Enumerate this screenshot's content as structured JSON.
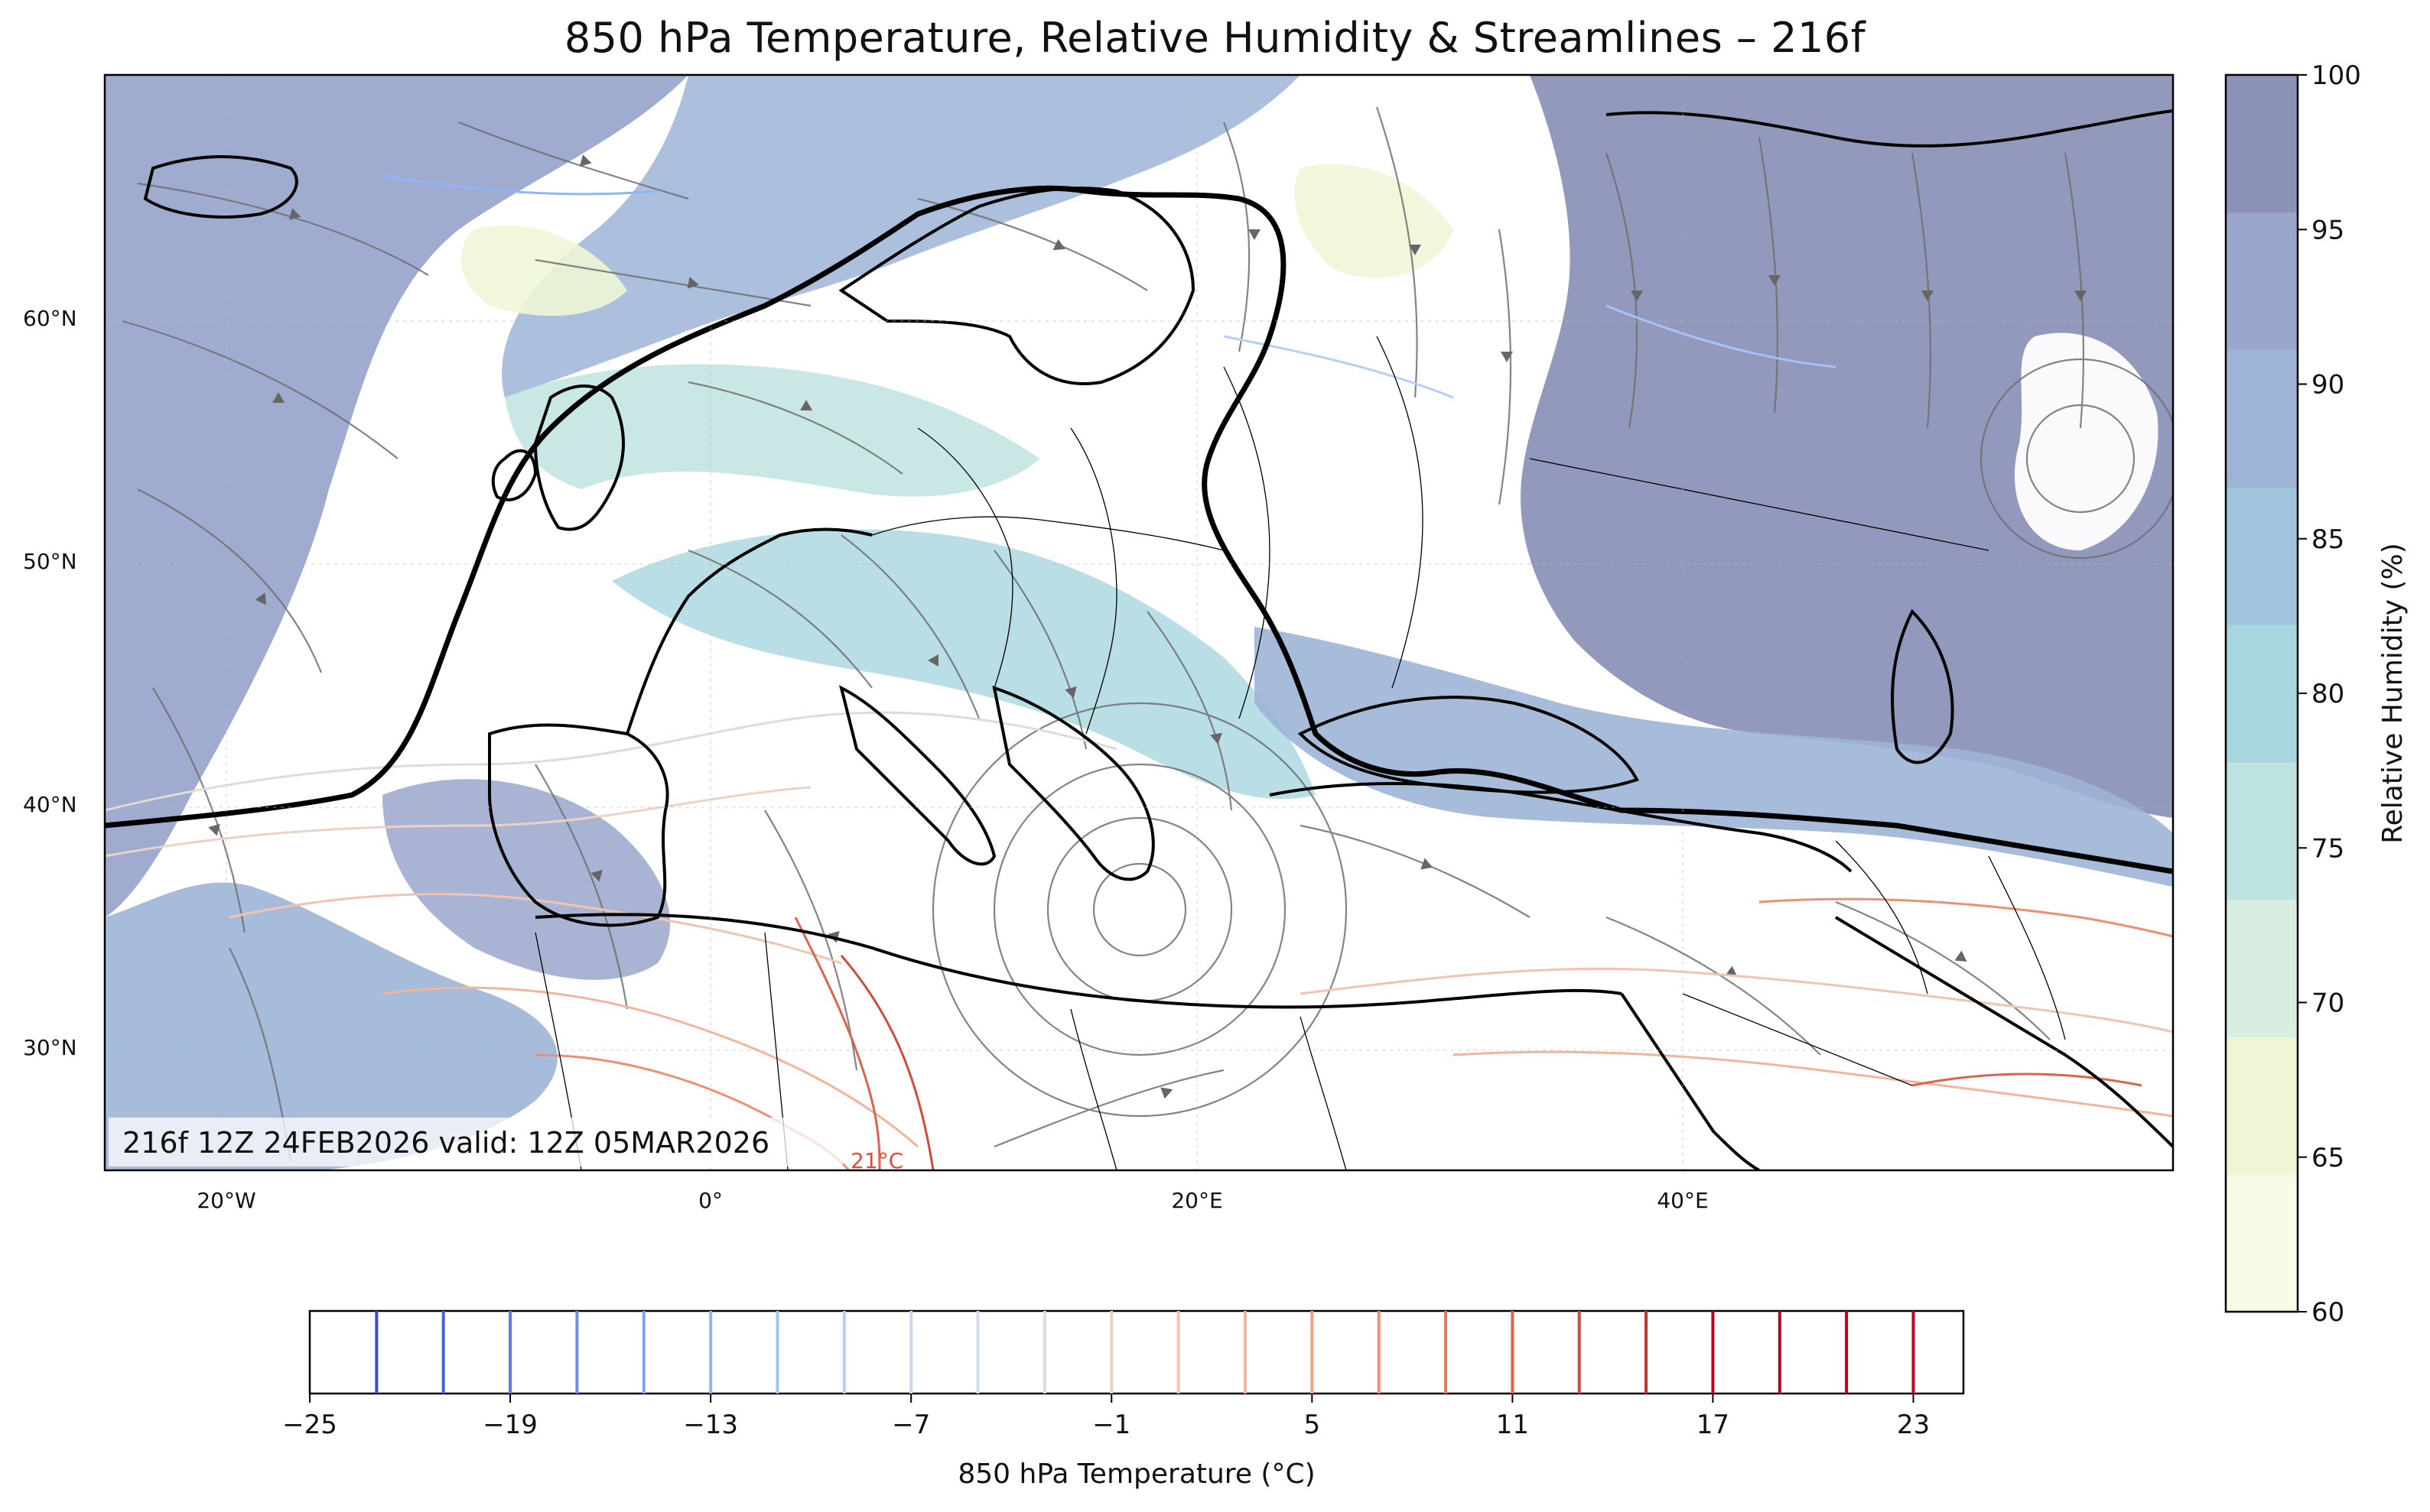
{
  "title": "850 hPa Temperature, Relative Humidity & Streamlines – 216f",
  "valid_label": "216f 12Z 24FEB2026 valid: 12Z 05MAR2026",
  "contour_label": "21°C",
  "lat_ticks": [
    "60°N",
    "50°N",
    "40°N",
    "30°N"
  ],
  "lon_ticks": [
    "20°W",
    "0°",
    "20°E",
    "40°E"
  ],
  "rh_colorbar": {
    "label": "Relative Humidity (%)",
    "ticks": [
      "60",
      "65",
      "70",
      "75",
      "80",
      "85",
      "90",
      "95",
      "100"
    ],
    "colors": [
      "#f7fae4",
      "#eef6d6",
      "#d8eee0",
      "#bfe3e0",
      "#a7d6df",
      "#9fc4dc",
      "#9db4d6",
      "#9aa6cc",
      "#8d93b8"
    ]
  },
  "temp_colorbar": {
    "label": "850 hPa Temperature (°C)",
    "ticks": [
      "−25",
      "−19",
      "−13",
      "−7",
      "−1",
      "5",
      "11",
      "17",
      "23"
    ],
    "level_colors": [
      "#3b4cc0",
      "#4a63d3",
      "#5a7be0",
      "#6b8fea",
      "#7ea3f2",
      "#91b3f7",
      "#a5c2f9",
      "#b7cff8",
      "#c8d8f3",
      "#d6dcea",
      "#e2dad5",
      "#ead3c6",
      "#f0c4b0",
      "#f3b49c",
      "#f2a287",
      "#ee8e73",
      "#e7795f",
      "#dd634d",
      "#cf4b3d",
      "#c03330",
      "#b40426"
    ]
  },
  "chart_data": {
    "type": "map",
    "title": "850 hPa Temperature, Relative Humidity & Streamlines – 216f",
    "lat_ticks_deg": [
      60,
      50,
      40,
      30
    ],
    "lon_ticks_deg": [
      -20,
      0,
      20,
      40
    ],
    "rh_levels": [
      60,
      65,
      70,
      75,
      80,
      85,
      90,
      95,
      100
    ],
    "temp_levels": [
      -25,
      -23,
      -21,
      -19,
      -17,
      -15,
      -13,
      -11,
      -9,
      -7,
      -5,
      -3,
      -1,
      1,
      3,
      5,
      7,
      9,
      11,
      13,
      15,
      17,
      19,
      21,
      23
    ]
  }
}
